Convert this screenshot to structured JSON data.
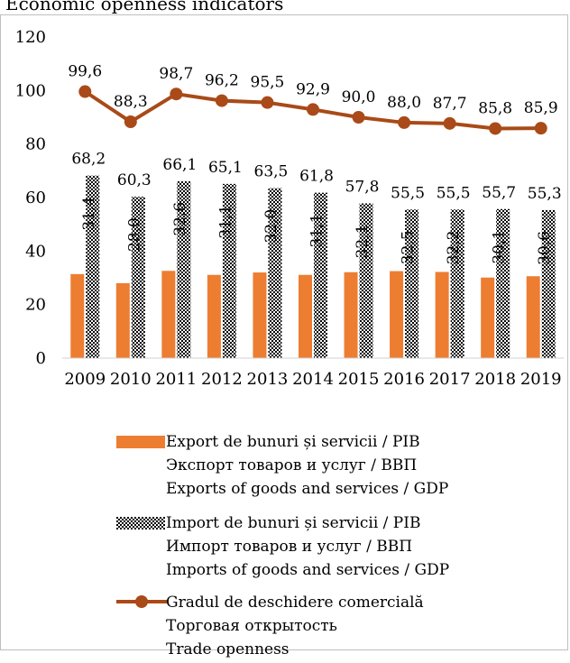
{
  "title": "Economic openness indicators",
  "colors": {
    "export": "#ED7D31",
    "openness": "#A94A18",
    "import_dark": "#000000",
    "import_light": "#ffffff"
  },
  "chart_data": {
    "type": "bar",
    "categories": [
      "2009",
      "2010",
      "2011",
      "2012",
      "2013",
      "2014",
      "2015",
      "2016",
      "2017",
      "2018",
      "2019"
    ],
    "ylim": [
      0,
      120
    ],
    "yticks": [
      "0",
      "20",
      "40",
      "60",
      "80",
      "100",
      "120"
    ],
    "series": [
      {
        "name": "Export de bunuri și servicii / PIB",
        "type": "bar",
        "values": [
          31.4,
          28.0,
          32.6,
          31.1,
          32.0,
          31.1,
          32.1,
          32.5,
          32.2,
          30.1,
          30.6
        ],
        "labels": [
          "31,4",
          "28,0",
          "32,6",
          "31,1",
          "32,0",
          "31,1",
          "32,1",
          "32,5",
          "32,2",
          "30,1",
          "30,6"
        ]
      },
      {
        "name": "Import de bunuri și servicii / PIB",
        "type": "bar",
        "pattern": "checkerboard",
        "values": [
          68.2,
          60.3,
          66.1,
          65.1,
          63.5,
          61.8,
          57.8,
          55.5,
          55.5,
          55.7,
          55.3
        ],
        "labels": [
          "68,2",
          "60,3",
          "66,1",
          "65,1",
          "63,5",
          "61,8",
          "57,8",
          "55,5",
          "55,5",
          "55,7",
          "55,3"
        ]
      },
      {
        "name": "Gradul de deschidere comercială",
        "type": "line",
        "values": [
          99.6,
          88.3,
          98.7,
          96.2,
          95.5,
          92.9,
          90.0,
          88.0,
          87.7,
          85.8,
          85.9
        ],
        "labels": [
          "99,6",
          "88,3",
          "98,7",
          "96,2",
          "95,5",
          "92,9",
          "90,0",
          "88,0",
          "87,7",
          "85,8",
          "85,9"
        ]
      }
    ],
    "legend": {
      "placement": "bottom",
      "entries": [
        {
          "lines": [
            "Export de bunuri și servicii / PIB",
            "Экспорт товаров и услуг / ВВП",
            "Exports of goods and services / GDP"
          ]
        },
        {
          "lines": [
            "Import de bunuri și servicii / PIB",
            "Импорт товаров и услуг / ВВП",
            "Imports of goods and services / GDP"
          ]
        },
        {
          "lines": [
            "Gradul de deschidere comercială",
            "Торговая открытость",
            "Trade openness"
          ]
        }
      ]
    }
  }
}
